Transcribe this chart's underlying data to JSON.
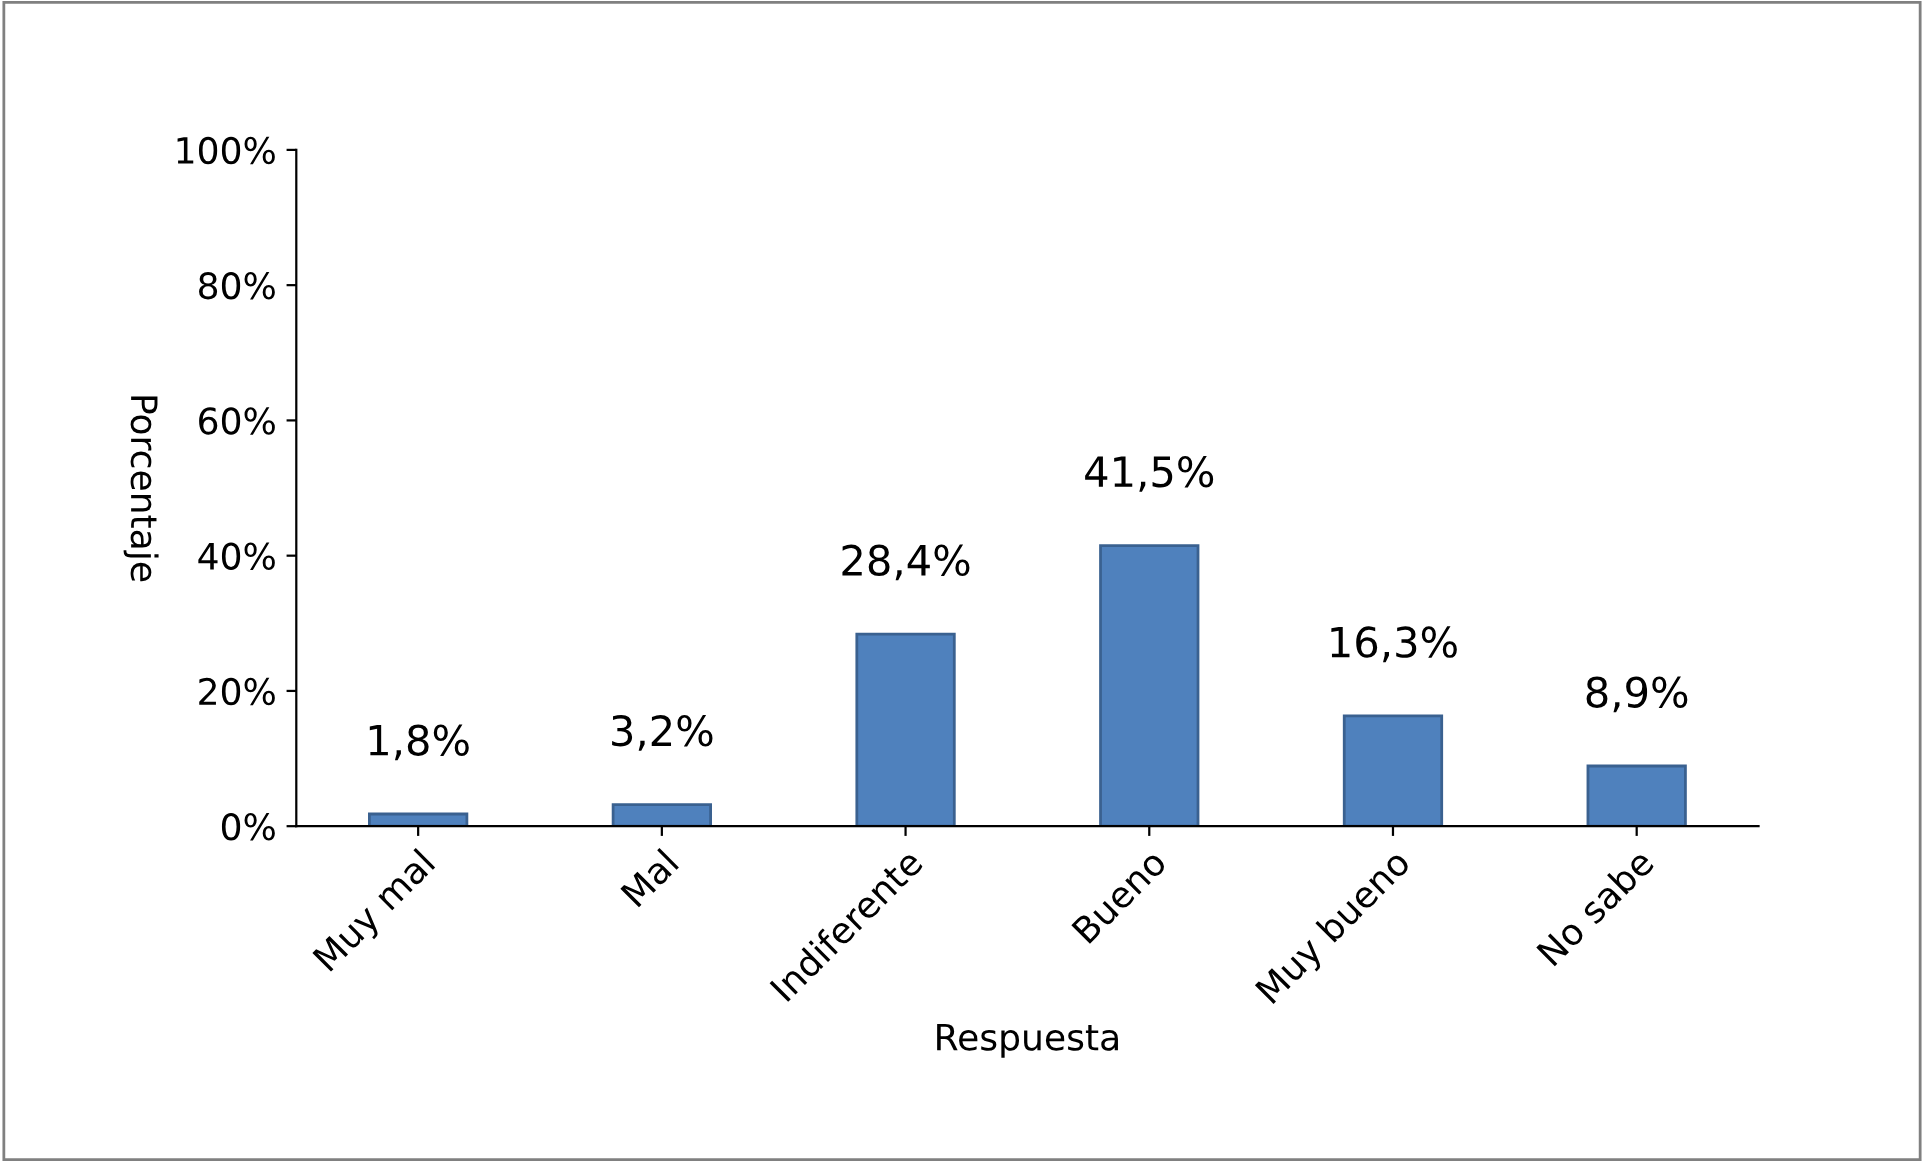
{
  "chart_data": {
    "type": "bar",
    "xlabel": "Respuesta",
    "ylabel": "Porcentaje",
    "categories": [
      "Muy mal",
      "Mal",
      "Indiferente",
      "Bueno",
      "Muy bueno",
      "No sabe"
    ],
    "values": [
      1.8,
      3.2,
      28.4,
      41.5,
      16.3,
      8.9
    ],
    "value_labels": [
      "1,8%",
      "3,2%",
      "28,4%",
      "41,5%",
      "16,3%",
      "8,9%"
    ],
    "color": "#4f81bd",
    "ylim": [
      0,
      100
    ],
    "yticks": [
      {
        "value": 0,
        "label": "0%"
      },
      {
        "value": 20,
        "label": "20%"
      },
      {
        "value": 40,
        "label": "40%"
      },
      {
        "value": 60,
        "label": "60%"
      },
      {
        "value": 80,
        "label": "80%"
      },
      {
        "value": 100,
        "label": "100%"
      }
    ],
    "grid": false
  }
}
